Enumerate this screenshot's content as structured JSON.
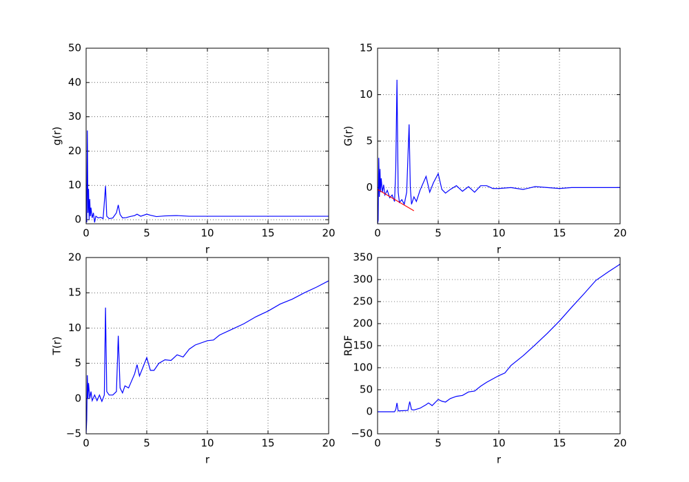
{
  "chart_data": [
    {
      "type": "line",
      "xlabel": "r",
      "ylabel": "g(r)",
      "grid": true,
      "xlim": [
        0,
        20
      ],
      "ylim": [
        -1.2,
        50
      ],
      "xticks": [
        0,
        5,
        10,
        15,
        20
      ],
      "yticks": [
        0,
        10,
        20,
        30,
        40,
        50
      ],
      "series": [
        {
          "color": "#0000ff",
          "x": [
            0,
            0.05,
            0.1,
            0.15,
            0.2,
            0.25,
            0.3,
            0.35,
            0.4,
            0.5,
            0.6,
            0.7,
            0.8,
            1.0,
            1.2,
            1.4,
            1.5,
            1.6,
            1.7,
            1.9,
            2.2,
            2.5,
            2.65,
            2.8,
            3.0,
            3.3,
            3.6,
            4.0,
            4.2,
            4.5,
            5.0,
            5.3,
            5.8,
            6.5,
            7.5,
            8.5,
            10,
            12,
            14,
            16,
            18,
            20
          ],
          "values": [
            0,
            -0.8,
            26,
            2,
            9,
            0,
            6,
            1,
            3.5,
            0.5,
            2,
            -0.8,
            1,
            0.5,
            0.7,
            0.3,
            5,
            9.8,
            1,
            0.3,
            0.5,
            2,
            4.3,
            1.5,
            0.5,
            0.6,
            0.9,
            1.2,
            1.6,
            1.0,
            1.6,
            1.3,
            0.9,
            1.1,
            1.2,
            1.0,
            1.0,
            1.0,
            1.0,
            1.0,
            1.0,
            1.0
          ]
        }
      ]
    },
    {
      "type": "line",
      "xlabel": "r",
      "ylabel": "G(r)",
      "grid": true,
      "xlim": [
        0,
        20
      ],
      "ylim": [
        -3.9,
        15
      ],
      "xticks": [
        0,
        5,
        10,
        15,
        20
      ],
      "yticks": [
        0,
        5,
        10,
        15
      ],
      "series": [
        {
          "color": "#0000ff",
          "x": [
            0,
            0.05,
            0.1,
            0.15,
            0.2,
            0.25,
            0.3,
            0.4,
            0.5,
            0.6,
            0.8,
            1.0,
            1.2,
            1.4,
            1.5,
            1.6,
            1.7,
            1.8,
            2.0,
            2.2,
            2.4,
            2.6,
            2.7,
            2.8,
            3.0,
            3.2,
            3.5,
            4.0,
            4.3,
            4.6,
            5.0,
            5.3,
            5.6,
            6.0,
            6.5,
            7.0,
            7.5,
            8.0,
            8.5,
            9.0,
            9.5,
            10,
            11,
            12,
            13,
            14,
            15,
            16,
            18,
            20
          ],
          "values": [
            -3.9,
            -3.5,
            3.2,
            -1,
            2,
            -0.5,
            1,
            -0.5,
            0.3,
            -0.8,
            -0.3,
            -1.1,
            -0.8,
            -1.5,
            2,
            11.6,
            -0.5,
            -1.6,
            -1.3,
            -1.8,
            -0.5,
            6.8,
            0,
            -1.8,
            -1.0,
            -1.5,
            -0.3,
            1.2,
            -0.5,
            0.5,
            1.5,
            -0.2,
            -0.6,
            -0.2,
            0.2,
            -0.4,
            0.1,
            -0.5,
            0.2,
            0.2,
            -0.1,
            -0.1,
            0,
            -0.2,
            0.1,
            0,
            -0.1,
            0,
            0,
            0
          ]
        },
        {
          "color": "#ff0000",
          "x": [
            0,
            3
          ],
          "values": [
            -0.2,
            -2.5
          ]
        }
      ]
    },
    {
      "type": "line",
      "xlabel": "r",
      "ylabel": "T(r)",
      "grid": true,
      "xlim": [
        0,
        20
      ],
      "ylim": [
        -5,
        20
      ],
      "xticks": [
        0,
        5,
        10,
        15,
        20
      ],
      "yticks": [
        {
          "value": -5,
          "label": "−5"
        },
        0,
        5,
        10,
        15,
        20
      ],
      "series": [
        {
          "color": "#0000ff",
          "x": [
            0,
            0.05,
            0.1,
            0.15,
            0.2,
            0.3,
            0.4,
            0.5,
            0.7,
            0.9,
            1.1,
            1.3,
            1.5,
            1.6,
            1.7,
            1.9,
            2.2,
            2.5,
            2.65,
            2.8,
            3.0,
            3.2,
            3.5,
            4.0,
            4.2,
            4.4,
            4.7,
            5.0,
            5.3,
            5.6,
            6.0,
            6.5,
            7.0,
            7.5,
            8.0,
            8.5,
            9.0,
            10,
            10.5,
            11,
            12,
            13,
            14,
            15,
            16,
            17,
            18,
            19,
            20
          ],
          "values": [
            -5,
            -3,
            3.3,
            0,
            2.2,
            0,
            1,
            -0.3,
            0.5,
            -0.3,
            0.5,
            -0.4,
            0.5,
            12.9,
            1,
            0.5,
            0.5,
            1,
            8.9,
            1.5,
            0.8,
            1.8,
            1.5,
            3.5,
            4.8,
            3.2,
            4.5,
            5.8,
            4,
            4,
            5.0,
            5.5,
            5.4,
            6.2,
            5.9,
            7.0,
            7.6,
            8.2,
            8.3,
            9.0,
            9.8,
            10.6,
            11.6,
            12.4,
            13.4,
            14.1,
            15.0,
            15.8,
            16.7
          ]
        }
      ]
    },
    {
      "type": "line",
      "xlabel": "r",
      "ylabel": "RDF",
      "grid": true,
      "xlim": [
        0,
        20
      ],
      "ylim": [
        -50,
        350
      ],
      "xticks": [
        0,
        5,
        10,
        15,
        20
      ],
      "yticks": [
        {
          "value": -50,
          "label": "−50"
        },
        0,
        50,
        100,
        150,
        200,
        250,
        300,
        350
      ],
      "series": [
        {
          "color": "#0000ff",
          "x": [
            0,
            1.4,
            1.5,
            1.6,
            1.7,
            2.5,
            2.65,
            2.8,
            3.0,
            3.5,
            4.0,
            4.2,
            4.5,
            5.0,
            5.3,
            5.6,
            6.0,
            6.5,
            7.0,
            7.5,
            8.0,
            8.5,
            9.0,
            10,
            10.5,
            11,
            12,
            13,
            14,
            15,
            16,
            17,
            18,
            19,
            20
          ],
          "values": [
            0,
            0,
            5,
            20,
            2,
            3,
            23,
            5,
            4,
            8,
            16,
            20,
            14,
            28,
            24,
            22,
            30,
            35,
            37,
            45,
            47,
            58,
            67,
            82,
            88,
            105,
            127,
            152,
            178,
            206,
            237,
            267,
            298,
            317,
            335
          ]
        }
      ]
    }
  ]
}
